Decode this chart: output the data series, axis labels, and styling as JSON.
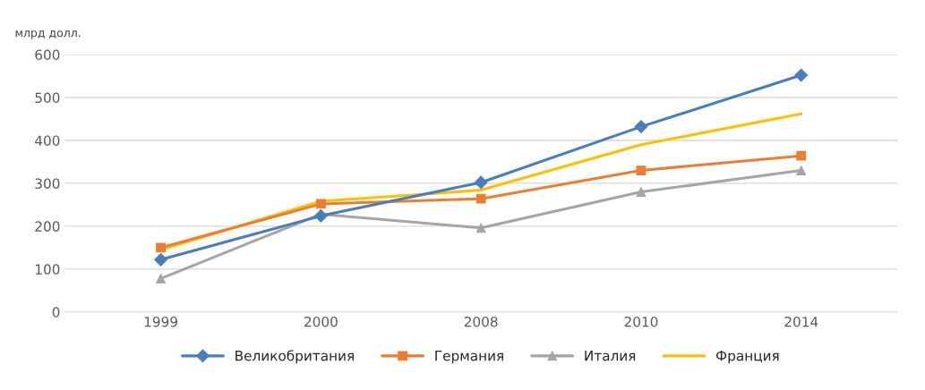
{
  "chart_data": {
    "type": "line",
    "ylabel": "млрд долл.",
    "categories": [
      "1999",
      "2000",
      "2008",
      "2010",
      "2014"
    ],
    "series": [
      {
        "name": "Великобритания",
        "color": "#4a7ebb",
        "marker": "diamond",
        "values": [
          122,
          224,
          302,
          432,
          552
        ]
      },
      {
        "name": "Германия",
        "color": "#ed7d31",
        "marker": "square",
        "values": [
          150,
          252,
          264,
          330,
          364
        ]
      },
      {
        "name": "Италия",
        "color": "#a5a5a5",
        "marker": "triangle",
        "values": [
          78,
          228,
          196,
          280,
          330
        ]
      },
      {
        "name": "Франция",
        "color": "#ffc000",
        "marker": "none",
        "values": [
          145,
          258,
          284,
          390,
          462
        ]
      }
    ],
    "ylim": [
      0,
      600
    ],
    "yticks": [
      0,
      100,
      200,
      300,
      400,
      500,
      600
    ],
    "grid": "y",
    "legend": "bottom"
  }
}
